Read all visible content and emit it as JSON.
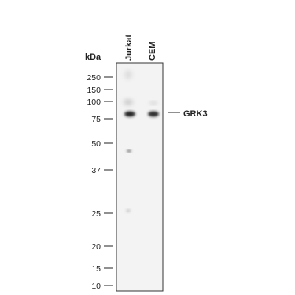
{
  "unit": "kDa",
  "lanes": [
    "Jurkat",
    "CEM"
  ],
  "markers": [
    250,
    150,
    100,
    75,
    50,
    37,
    25,
    20,
    15,
    10
  ],
  "band_label": "GRK3"
}
